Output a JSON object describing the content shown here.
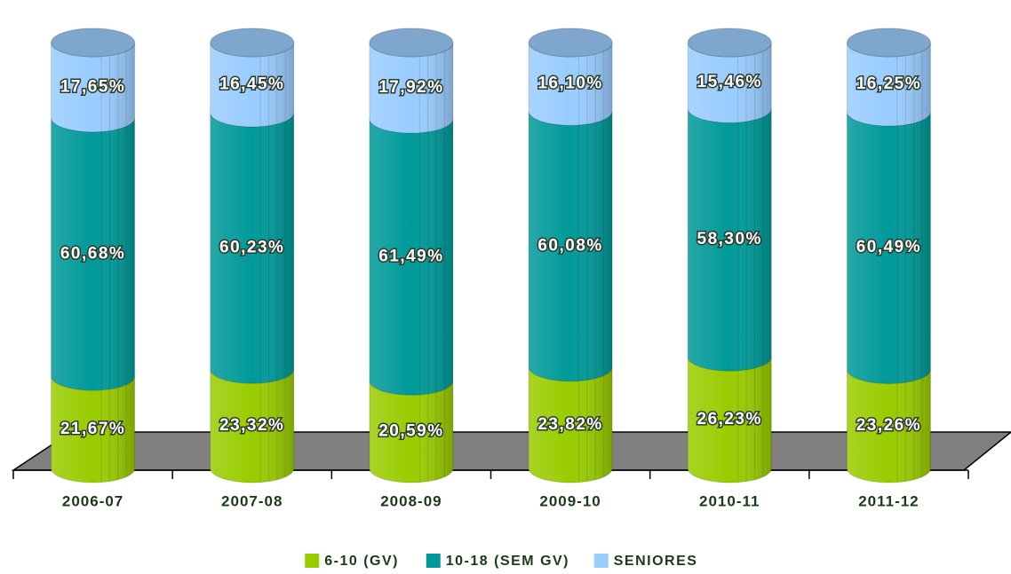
{
  "chart_data": {
    "type": "bar",
    "stacked": true,
    "categories": [
      "2006-07",
      "2007-08",
      "2008-09",
      "2009-10",
      "2010-11",
      "2011-12"
    ],
    "series": [
      {
        "name": "6-10 (GV)",
        "color": "#99cc00",
        "values": [
          21.67,
          23.32,
          20.59,
          23.82,
          26.23,
          23.26
        ],
        "value_labels": [
          "21,67%",
          "23,32%",
          "20,59%",
          "23,82%",
          "26,23%",
          "23,26%"
        ]
      },
      {
        "name": "10-18 (SEM GV)",
        "color": "#009999",
        "values": [
          60.68,
          60.23,
          61.49,
          60.08,
          58.3,
          60.49
        ],
        "value_labels": [
          "60,68%",
          "60,23%",
          "61,49%",
          "60,08%",
          "58,30%",
          "60,49%"
        ]
      },
      {
        "name": "SENIORES",
        "color": "#99ccff",
        "values": [
          17.65,
          16.45,
          17.92,
          16.1,
          15.46,
          16.25
        ],
        "value_labels": [
          "17,65%",
          "16,45%",
          "17,92%",
          "16,10%",
          "15,46%",
          "16,25%"
        ]
      }
    ],
    "legend": "bottom"
  }
}
